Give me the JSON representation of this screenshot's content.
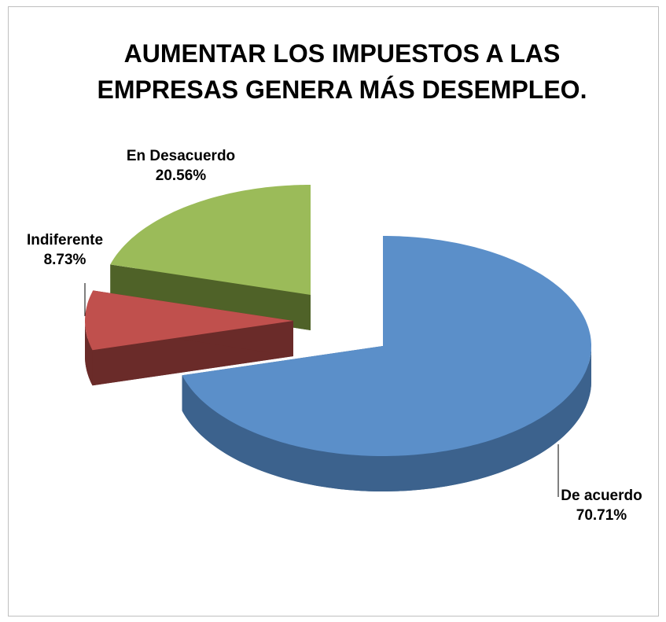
{
  "chart_data": {
    "type": "pie",
    "title": "AUMENTAR LOS IMPUESTOS A LAS EMPRESAS GENERA MÁS DESEMPLEO.",
    "categories": [
      "De acuerdo",
      "Indiferente",
      "En Desacuerdo"
    ],
    "values": [
      70.71,
      8.73,
      20.56
    ],
    "value_labels": [
      "70.71%",
      "8.73%",
      "20.56%"
    ],
    "colors": [
      "#5b8fc9",
      "#c0504d",
      "#9bbb59"
    ],
    "side_colors": [
      "#3c628d",
      "#6a2b29",
      "#4f6228"
    ]
  }
}
